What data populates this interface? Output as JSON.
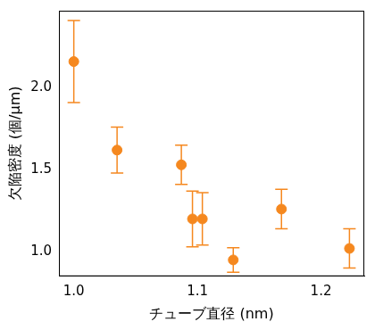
{
  "chart_data": {
    "type": "scatter",
    "x_label": "チューブ直径 (nm)",
    "y_label": "欠陥密度 (個/μm)",
    "x": [
      1.0,
      1.035,
      1.087,
      1.096,
      1.104,
      1.129,
      1.168,
      1.223
    ],
    "values": [
      2.16,
      1.62,
      1.53,
      1.2,
      1.2,
      0.95,
      1.26,
      1.02
    ],
    "errors": [
      0.25,
      0.14,
      0.12,
      0.17,
      0.16,
      0.075,
      0.12,
      0.12
    ],
    "color": "#f5881f",
    "marker": "circle",
    "xlim": [
      0.988,
      1.235
    ],
    "xticks": [
      {
        "value": 1.0,
        "label": "1.0"
      },
      {
        "value": 1.1,
        "label": "1.1"
      },
      {
        "value": 1.2,
        "label": "1.2"
      }
    ],
    "ylim": [
      0.85,
      2.47
    ],
    "yticks": [
      {
        "value": 1.0,
        "label": "1.0"
      },
      {
        "value": 1.5,
        "label": "1.5"
      },
      {
        "value": 2.0,
        "label": "2.0"
      }
    ],
    "grid": false
  }
}
